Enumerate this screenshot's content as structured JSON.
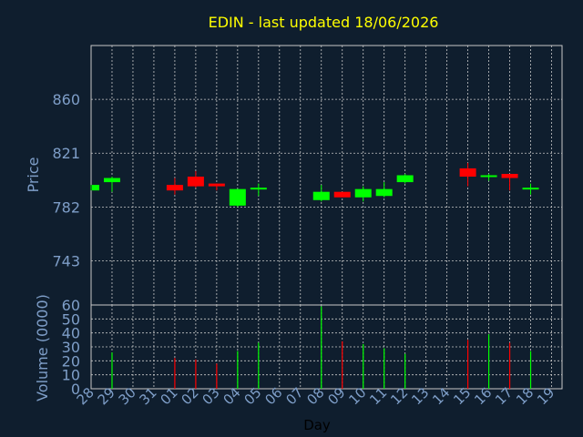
{
  "chart_data": [
    {
      "type": "candlestick",
      "title": "EDIN - last updated 18/06/2026",
      "ylabel": "Price",
      "ylim": [
        711,
        899
      ],
      "yticks": [
        743,
        782,
        821,
        860
      ],
      "grid": true,
      "colors": {
        "up": "#00ff00",
        "down": "#ff0000",
        "title": "#ffff00",
        "axis_text": "#7e9ec8",
        "background": "#0f1e2e",
        "grid": "#c8c8c8"
      },
      "x_tick_labels": [
        "28",
        "29",
        "30",
        "31",
        "01",
        "02",
        "03",
        "04",
        "05",
        "06",
        "07",
        "08",
        "09",
        "10",
        "11",
        "12",
        "13",
        "14",
        "15",
        "16",
        "17",
        "18",
        "19"
      ],
      "candles": [
        {
          "day": "28",
          "open": 794,
          "close": 798,
          "high": 798,
          "low": 794
        },
        {
          "day": "29",
          "open": 800,
          "close": 803,
          "high": 804,
          "low": 793
        },
        {
          "day": "01",
          "open": 798,
          "close": 794,
          "high": 803,
          "low": 791
        },
        {
          "day": "02",
          "open": 804,
          "close": 797,
          "high": 808,
          "low": 796
        },
        {
          "day": "03",
          "open": 799,
          "close": 797,
          "high": 799,
          "low": 794
        },
        {
          "day": "04",
          "open": 783,
          "close": 795,
          "high": 795,
          "low": 782
        },
        {
          "day": "05",
          "open": 796,
          "close": 796,
          "high": 799,
          "low": 790
        },
        {
          "day": "08",
          "open": 787,
          "close": 793,
          "high": 798,
          "low": 786
        },
        {
          "day": "09",
          "open": 793,
          "close": 789,
          "high": 793,
          "low": 789
        },
        {
          "day": "10",
          "open": 789,
          "close": 795,
          "high": 797,
          "low": 786
        },
        {
          "day": "11",
          "open": 790,
          "close": 795,
          "high": 800,
          "low": 789
        },
        {
          "day": "12",
          "open": 800,
          "close": 805,
          "high": 806,
          "low": 799
        },
        {
          "day": "15",
          "open": 810,
          "close": 804,
          "high": 814,
          "low": 797
        },
        {
          "day": "16",
          "open": 804,
          "close": 805,
          "high": 806,
          "low": 801
        },
        {
          "day": "17",
          "open": 806,
          "close": 803,
          "high": 806,
          "low": 794
        },
        {
          "day": "18",
          "open": 796,
          "close": 796,
          "high": 799,
          "low": 791
        }
      ]
    },
    {
      "type": "bar",
      "ylabel": "Volume (0000)",
      "xlabel": "Day",
      "ylim": [
        0,
        60
      ],
      "yticks": [
        0,
        10,
        20,
        30,
        40,
        50,
        60
      ],
      "grid": true,
      "bars": [
        {
          "day": "29",
          "value": 26,
          "direction": "up"
        },
        {
          "day": "01",
          "value": 22,
          "direction": "down"
        },
        {
          "day": "02",
          "value": 21,
          "direction": "down"
        },
        {
          "day": "03",
          "value": 18,
          "direction": "down"
        },
        {
          "day": "04",
          "value": 27,
          "direction": "up"
        },
        {
          "day": "05",
          "value": 33,
          "direction": "up"
        },
        {
          "day": "08",
          "value": 59,
          "direction": "up"
        },
        {
          "day": "09",
          "value": 34,
          "direction": "down"
        },
        {
          "day": "10",
          "value": 32,
          "direction": "up"
        },
        {
          "day": "11",
          "value": 29,
          "direction": "up"
        },
        {
          "day": "12",
          "value": 25,
          "direction": "up"
        },
        {
          "day": "15",
          "value": 35,
          "direction": "down"
        },
        {
          "day": "16",
          "value": 39,
          "direction": "up"
        },
        {
          "day": "17",
          "value": 33,
          "direction": "down"
        },
        {
          "day": "18",
          "value": 27,
          "direction": "up"
        }
      ]
    }
  ]
}
